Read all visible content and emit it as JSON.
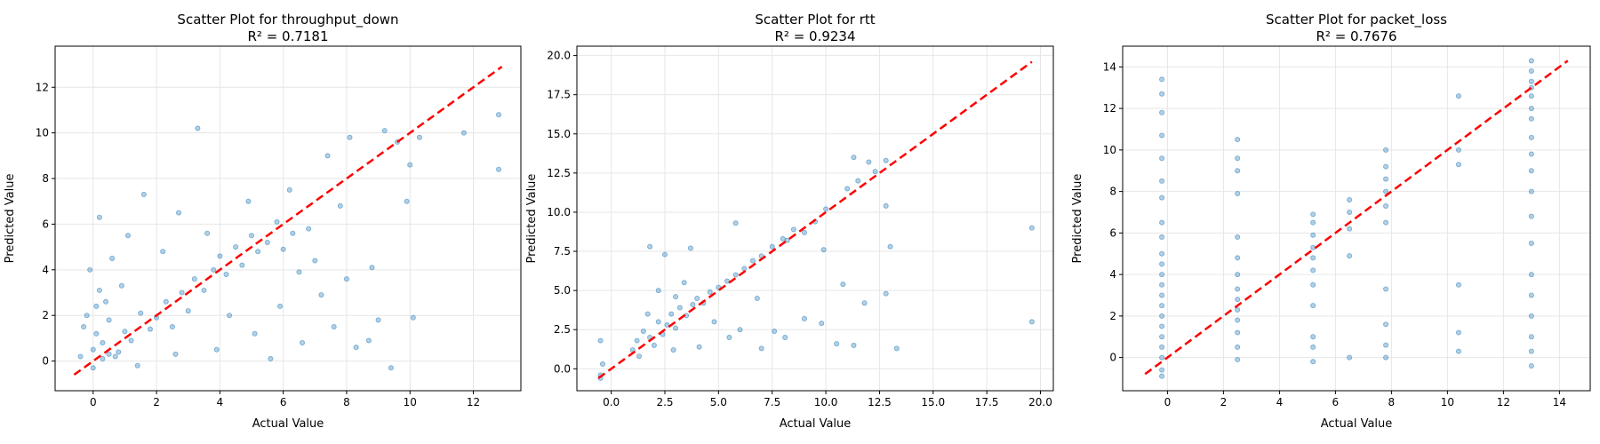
{
  "chart_data": [
    {
      "type": "scatter",
      "title": "Scatter Plot for throughput_down",
      "subtitle": "R² = 0.7181",
      "xlabel": "Actual Value",
      "ylabel": "Predicted Value",
      "xlim": [
        -1.2,
        13.5
      ],
      "ylim": [
        -1.3,
        13.8
      ],
      "xticks": [
        0,
        2,
        4,
        6,
        8,
        10,
        12
      ],
      "xtick_labels": [
        "0",
        "2",
        "4",
        "6",
        "8",
        "10",
        "12"
      ],
      "yticks": [
        0,
        2,
        4,
        6,
        8,
        10,
        12
      ],
      "ytick_labels": [
        "0",
        "2",
        "4",
        "6",
        "8",
        "10",
        "12"
      ],
      "grid": true,
      "point_color": "#1f77b4",
      "line_color": "#ff0000",
      "reference_line": [
        [
          -0.6,
          -0.6
        ],
        [
          12.9,
          12.9
        ]
      ],
      "points": [
        [
          0,
          0.5
        ],
        [
          0.1,
          1.2
        ],
        [
          -0.2,
          2.0
        ],
        [
          0.3,
          0.1
        ],
        [
          0.5,
          1.8
        ],
        [
          0.2,
          3.1
        ],
        [
          -0.1,
          4.0
        ],
        [
          0.4,
          2.6
        ],
        [
          0.8,
          0.4
        ],
        [
          1.0,
          1.3
        ],
        [
          1.2,
          0.9
        ],
        [
          1.5,
          2.1
        ],
        [
          1.8,
          1.4
        ],
        [
          2.0,
          1.9
        ],
        [
          0.6,
          4.5
        ],
        [
          0.9,
          3.3
        ],
        [
          2.3,
          2.6
        ],
        [
          2.5,
          1.5
        ],
        [
          2.8,
          3.0
        ],
        [
          3.0,
          2.2
        ],
        [
          3.2,
          3.6
        ],
        [
          3.5,
          3.1
        ],
        [
          3.8,
          4.0
        ],
        [
          4.0,
          4.6
        ],
        [
          4.2,
          3.8
        ],
        [
          4.5,
          5.0
        ],
        [
          4.7,
          4.2
        ],
        [
          5.0,
          5.5
        ],
        [
          5.2,
          4.8
        ],
        [
          5.5,
          5.2
        ],
        [
          5.8,
          6.1
        ],
        [
          6.0,
          4.9
        ],
        [
          6.3,
          5.6
        ],
        [
          6.5,
          3.9
        ],
        [
          6.8,
          5.8
        ],
        [
          7.0,
          4.4
        ],
        [
          4.3,
          2.0
        ],
        [
          5.1,
          1.2
        ],
        [
          5.9,
          2.4
        ],
        [
          6.6,
          0.8
        ],
        [
          7.2,
          2.9
        ],
        [
          7.6,
          1.5
        ],
        [
          8.0,
          3.6
        ],
        [
          8.3,
          0.6
        ],
        [
          8.8,
          4.1
        ],
        [
          9.0,
          1.8
        ],
        [
          3.3,
          10.2
        ],
        [
          7.4,
          9.0
        ],
        [
          8.1,
          9.8
        ],
        [
          9.2,
          10.1
        ],
        [
          10.0,
          8.6
        ],
        [
          9.6,
          9.6
        ],
        [
          11.7,
          10.0
        ],
        [
          12.8,
          10.8
        ],
        [
          12.8,
          8.4
        ],
        [
          10.3,
          9.8
        ],
        [
          9.9,
          7.0
        ],
        [
          1.6,
          7.3
        ],
        [
          2.7,
          6.5
        ],
        [
          4.9,
          7.0
        ],
        [
          6.2,
          7.5
        ],
        [
          7.8,
          6.8
        ],
        [
          0.2,
          6.3
        ],
        [
          1.1,
          5.5
        ],
        [
          2.2,
          4.8
        ],
        [
          3.6,
          5.6
        ],
        [
          0.0,
          -0.3
        ],
        [
          0.7,
          0.2
        ],
        [
          1.4,
          -0.2
        ],
        [
          2.6,
          0.3
        ],
        [
          3.9,
          0.5
        ],
        [
          5.6,
          0.1
        ],
        [
          8.7,
          0.9
        ],
        [
          9.4,
          -0.3
        ],
        [
          10.1,
          1.9
        ],
        [
          0.3,
          0.8
        ],
        [
          -0.3,
          1.5
        ],
        [
          0.1,
          2.4
        ],
        [
          -0.4,
          0.2
        ],
        [
          0.5,
          0.3
        ]
      ]
    },
    {
      "type": "scatter",
      "title": "Scatter Plot for rtt",
      "subtitle": "R² = 0.9234",
      "xlabel": "Actual Value",
      "ylabel": "Predicted Value",
      "xlim": [
        -1.6,
        20.6
      ],
      "ylim": [
        -1.4,
        20.6
      ],
      "xticks": [
        0,
        2.5,
        5,
        7.5,
        10,
        12.5,
        15,
        17.5,
        20
      ],
      "xtick_labels": [
        "0.0",
        "2.5",
        "5.0",
        "7.5",
        "10.0",
        "12.5",
        "15.0",
        "17.5",
        "20.0"
      ],
      "yticks": [
        0,
        2.5,
        5,
        7.5,
        10,
        12.5,
        15,
        17.5,
        20
      ],
      "ytick_labels": [
        "0.0",
        "2.5",
        "5.0",
        "7.5",
        "10.0",
        "12.5",
        "15.0",
        "17.5",
        "20.0"
      ],
      "grid": true,
      "point_color": "#1f77b4",
      "line_color": "#ff0000",
      "reference_line": [
        [
          -0.6,
          -0.6
        ],
        [
          19.6,
          19.6
        ]
      ],
      "points": [
        [
          -0.5,
          -0.4
        ],
        [
          -0.5,
          -0.6
        ],
        [
          -0.4,
          0.3
        ],
        [
          -0.5,
          1.8
        ],
        [
          1.0,
          1.2
        ],
        [
          1.2,
          1.8
        ],
        [
          1.5,
          2.4
        ],
        [
          1.3,
          0.8
        ],
        [
          1.8,
          2.0
        ],
        [
          2.0,
          1.5
        ],
        [
          2.2,
          3.0
        ],
        [
          2.4,
          2.2
        ],
        [
          2.6,
          2.8
        ],
        [
          2.8,
          3.5
        ],
        [
          3.0,
          2.6
        ],
        [
          3.2,
          3.9
        ],
        [
          3.5,
          3.4
        ],
        [
          3.8,
          4.1
        ],
        [
          4.0,
          4.5
        ],
        [
          4.3,
          4.2
        ],
        [
          4.6,
          4.9
        ],
        [
          5.0,
          5.2
        ],
        [
          5.4,
          5.6
        ],
        [
          5.8,
          6.0
        ],
        [
          6.2,
          6.4
        ],
        [
          6.6,
          6.9
        ],
        [
          7.0,
          7.2
        ],
        [
          7.5,
          7.8
        ],
        [
          8.0,
          8.3
        ],
        [
          8.5,
          8.9
        ],
        [
          9.0,
          8.7
        ],
        [
          9.5,
          9.4
        ],
        [
          10.0,
          10.2
        ],
        [
          11.0,
          11.5
        ],
        [
          11.5,
          12.0
        ],
        [
          12.3,
          12.6
        ],
        [
          12.8,
          13.3
        ],
        [
          11.3,
          13.5
        ],
        [
          12.0,
          13.2
        ],
        [
          1.8,
          7.8
        ],
        [
          2.5,
          7.3
        ],
        [
          3.7,
          7.7
        ],
        [
          5.8,
          9.3
        ],
        [
          8.2,
          8.2
        ],
        [
          6.0,
          2.5
        ],
        [
          7.0,
          1.3
        ],
        [
          7.6,
          2.4
        ],
        [
          8.1,
          2.0
        ],
        [
          9.0,
          3.2
        ],
        [
          9.8,
          2.9
        ],
        [
          10.5,
          1.6
        ],
        [
          11.3,
          1.5
        ],
        [
          11.8,
          4.2
        ],
        [
          12.8,
          4.8
        ],
        [
          13.3,
          1.3
        ],
        [
          19.6,
          9.0
        ],
        [
          19.6,
          3.0
        ],
        [
          4.8,
          3.0
        ],
        [
          5.5,
          2.0
        ],
        [
          2.2,
          5.0
        ],
        [
          3.4,
          5.5
        ],
        [
          1.7,
          3.5
        ],
        [
          2.9,
          1.2
        ],
        [
          4.1,
          1.4
        ],
        [
          12.8,
          10.4
        ],
        [
          9.9,
          7.6
        ],
        [
          10.8,
          5.4
        ],
        [
          6.8,
          4.5
        ],
        [
          13.0,
          7.8
        ],
        [
          3.0,
          4.6
        ]
      ]
    },
    {
      "type": "scatter",
      "title": "Scatter Plot for packet_loss",
      "subtitle": "R² = 0.7676",
      "xlabel": "Actual Value",
      "ylabel": "Predicted Value",
      "xlim": [
        -1.6,
        15.1
      ],
      "ylim": [
        -1.6,
        15.0
      ],
      "xticks": [
        0,
        2,
        4,
        6,
        8,
        10,
        12,
        14
      ],
      "xtick_labels": [
        "0",
        "2",
        "4",
        "6",
        "8",
        "10",
        "12",
        "14"
      ],
      "yticks": [
        0,
        2,
        4,
        6,
        8,
        10,
        12,
        14
      ],
      "ytick_labels": [
        "0",
        "2",
        "4",
        "6",
        "8",
        "10",
        "12",
        "14"
      ],
      "grid": true,
      "point_color": "#1f77b4",
      "line_color": "#ff0000",
      "reference_line": [
        [
          -0.8,
          -0.8
        ],
        [
          14.3,
          14.3
        ]
      ],
      "points": [
        [
          -0.2,
          -0.6
        ],
        [
          -0.2,
          0.0
        ],
        [
          -0.2,
          0.5
        ],
        [
          -0.2,
          1.0
        ],
        [
          -0.2,
          1.5
        ],
        [
          -0.2,
          2.0
        ],
        [
          -0.2,
          2.5
        ],
        [
          -0.2,
          3.0
        ],
        [
          -0.2,
          3.5
        ],
        [
          -0.2,
          4.0
        ],
        [
          -0.2,
          4.5
        ],
        [
          -0.2,
          5.0
        ],
        [
          -0.2,
          5.8
        ],
        [
          -0.2,
          6.5
        ],
        [
          -0.2,
          7.7
        ],
        [
          -0.2,
          8.5
        ],
        [
          -0.2,
          9.6
        ],
        [
          -0.2,
          10.7
        ],
        [
          -0.2,
          11.8
        ],
        [
          -0.2,
          12.7
        ],
        [
          -0.2,
          13.4
        ],
        [
          -0.2,
          -0.9
        ],
        [
          2.5,
          -0.1
        ],
        [
          2.5,
          0.5
        ],
        [
          2.5,
          1.2
        ],
        [
          2.5,
          1.8
        ],
        [
          2.5,
          2.3
        ],
        [
          2.5,
          2.8
        ],
        [
          2.5,
          3.3
        ],
        [
          2.5,
          4.0
        ],
        [
          2.5,
          4.8
        ],
        [
          2.5,
          5.8
        ],
        [
          2.5,
          7.9
        ],
        [
          2.5,
          9.0
        ],
        [
          2.5,
          9.6
        ],
        [
          2.5,
          10.5
        ],
        [
          5.2,
          -0.2
        ],
        [
          5.2,
          0.5
        ],
        [
          5.2,
          1.0
        ],
        [
          5.2,
          2.5
        ],
        [
          5.2,
          3.5
        ],
        [
          5.2,
          4.2
        ],
        [
          5.2,
          4.8
        ],
        [
          5.2,
          5.3
        ],
        [
          5.2,
          5.9
        ],
        [
          5.2,
          6.5
        ],
        [
          5.2,
          6.9
        ],
        [
          6.5,
          0.0
        ],
        [
          6.5,
          4.9
        ],
        [
          6.5,
          6.2
        ],
        [
          6.5,
          7.0
        ],
        [
          6.5,
          7.6
        ],
        [
          7.8,
          0.0
        ],
        [
          7.8,
          0.6
        ],
        [
          7.8,
          1.6
        ],
        [
          7.8,
          3.3
        ],
        [
          7.8,
          6.5
        ],
        [
          7.8,
          7.3
        ],
        [
          7.8,
          8.0
        ],
        [
          7.8,
          8.6
        ],
        [
          7.8,
          9.2
        ],
        [
          7.8,
          10.0
        ],
        [
          10.4,
          0.3
        ],
        [
          10.4,
          1.2
        ],
        [
          10.4,
          3.5
        ],
        [
          10.4,
          9.3
        ],
        [
          10.4,
          10.0
        ],
        [
          10.4,
          12.6
        ],
        [
          13.0,
          -0.4
        ],
        [
          13.0,
          0.3
        ],
        [
          13.0,
          1.0
        ],
        [
          13.0,
          2.0
        ],
        [
          13.0,
          3.0
        ],
        [
          13.0,
          4.0
        ],
        [
          13.0,
          5.5
        ],
        [
          13.0,
          6.8
        ],
        [
          13.0,
          8.0
        ],
        [
          13.0,
          9.0
        ],
        [
          13.0,
          9.8
        ],
        [
          13.0,
          10.6
        ],
        [
          13.0,
          11.5
        ],
        [
          13.0,
          12.0
        ],
        [
          13.0,
          12.6
        ],
        [
          13.0,
          13.0
        ],
        [
          13.0,
          13.3
        ],
        [
          13.0,
          13.8
        ],
        [
          13.0,
          14.3
        ]
      ]
    }
  ]
}
